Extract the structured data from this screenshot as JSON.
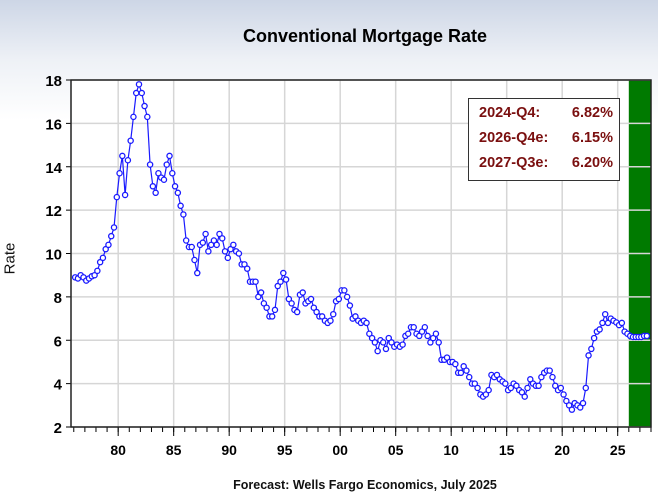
{
  "chart_data": {
    "type": "line",
    "title": "Conventional Mortgage Rate",
    "ylabel": "Rate",
    "xlabel": "",
    "footer": "Forecast: Wells Fargo Economics, July 2025",
    "xlim": [
      1975.75,
      2028.0
    ],
    "ylim": [
      2,
      18
    ],
    "yticks": [
      2,
      4,
      6,
      8,
      10,
      12,
      14,
      16,
      18
    ],
    "xticks": [
      {
        "year": 1980,
        "label": "80"
      },
      {
        "year": 1985,
        "label": "85"
      },
      {
        "year": 1990,
        "label": "90"
      },
      {
        "year": 1995,
        "label": "95"
      },
      {
        "year": 2000,
        "label": "00"
      },
      {
        "year": 2005,
        "label": "05"
      },
      {
        "year": 2010,
        "label": "10"
      },
      {
        "year": 2015,
        "label": "15"
      },
      {
        "year": 2020,
        "label": "20"
      },
      {
        "year": 2025,
        "label": "25"
      }
    ],
    "grid": true,
    "start_quarter": "1976-Q1",
    "frequency": "quarterly",
    "forecast_shading": {
      "from": 2026.0,
      "to": 2028.0,
      "color": "#007a00"
    },
    "series_color": "#1a1aff",
    "values": [
      8.9,
      8.85,
      9.0,
      8.9,
      8.75,
      8.85,
      8.95,
      9.0,
      9.2,
      9.6,
      9.8,
      10.2,
      10.4,
      10.8,
      11.2,
      12.6,
      13.7,
      14.5,
      12.7,
      14.3,
      15.2,
      16.3,
      17.4,
      17.8,
      17.4,
      16.8,
      16.3,
      14.1,
      13.1,
      12.8,
      13.7,
      13.5,
      13.4,
      14.1,
      14.5,
      13.7,
      13.1,
      12.8,
      12.2,
      11.8,
      10.6,
      10.3,
      10.3,
      9.7,
      9.1,
      10.4,
      10.5,
      10.9,
      10.1,
      10.4,
      10.6,
      10.4,
      10.9,
      10.7,
      10.1,
      9.8,
      10.2,
      10.4,
      10.1,
      10.0,
      9.5,
      9.5,
      9.3,
      8.7,
      8.7,
      8.7,
      8.0,
      8.2,
      7.7,
      7.5,
      7.1,
      7.1,
      7.4,
      8.5,
      8.7,
      9.1,
      8.8,
      7.9,
      7.7,
      7.4,
      7.3,
      8.1,
      8.2,
      7.7,
      7.8,
      7.9,
      7.5,
      7.3,
      7.1,
      7.1,
      6.9,
      6.8,
      6.9,
      7.2,
      7.8,
      7.9,
      8.3,
      8.3,
      8.0,
      7.6,
      7.0,
      7.1,
      6.9,
      6.8,
      6.9,
      6.8,
      6.3,
      6.1,
      5.9,
      5.5,
      6.0,
      5.9,
      5.6,
      6.1,
      5.9,
      5.7,
      5.8,
      5.7,
      5.8,
      6.2,
      6.3,
      6.6,
      6.6,
      6.3,
      6.2,
      6.4,
      6.6,
      6.2,
      5.9,
      6.1,
      6.3,
      5.9,
      5.1,
      5.1,
      5.2,
      5.0,
      5.0,
      4.9,
      4.5,
      4.5,
      4.8,
      4.6,
      4.3,
      4.0,
      4.0,
      3.8,
      3.5,
      3.4,
      3.5,
      3.7,
      4.4,
      4.3,
      4.4,
      4.2,
      4.1,
      4.0,
      3.7,
      3.8,
      4.0,
      3.9,
      3.7,
      3.6,
      3.4,
      3.8,
      4.2,
      4.0,
      3.9,
      3.9,
      4.3,
      4.5,
      4.6,
      4.6,
      4.3,
      3.9,
      3.7,
      3.8,
      3.5,
      3.2,
      3.0,
      2.8,
      3.1,
      3.0,
      2.9,
      3.1,
      3.8,
      5.3,
      5.6,
      6.1,
      6.4,
      6.5,
      6.8,
      7.2,
      6.8,
      7.0,
      6.9,
      6.82,
      6.7,
      6.8,
      6.4,
      6.3,
      6.2,
      6.15,
      6.15,
      6.15,
      6.15,
      6.2,
      6.2
    ],
    "annotations": [
      {
        "label": "2024-Q4:",
        "value": "6.82%"
      },
      {
        "label": "2026-Q4e:",
        "value": "6.15%"
      },
      {
        "label": "2027-Q3e:",
        "value": "6.20%"
      }
    ],
    "annotation_color": "#7a0f0f",
    "legend_placement": "top-right"
  }
}
